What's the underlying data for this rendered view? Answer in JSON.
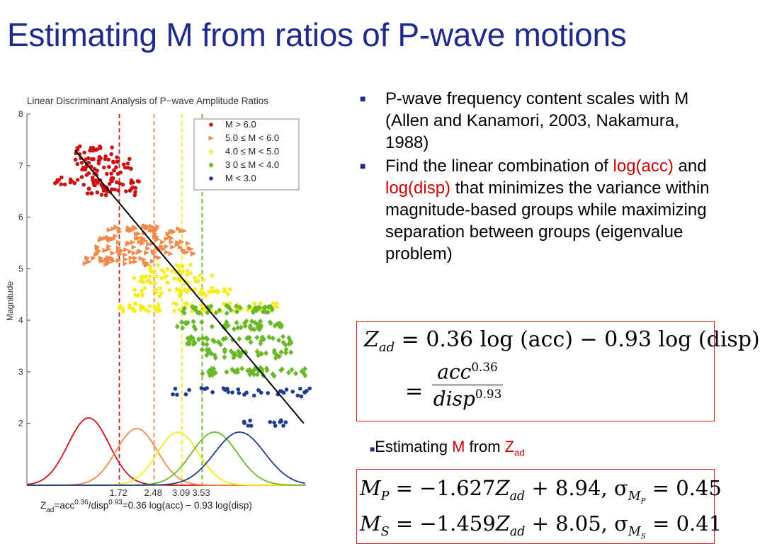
{
  "slide": {
    "title": "Estimating M from ratios of P-wave motions"
  },
  "bullets": {
    "b1": "P-wave frequency content scales with M (Allen and Kanamori, 2003, Nakamura, 1988)",
    "b2_pre": "Find the linear combination of ",
    "b2_acc": "log(acc)",
    "b2_and": " and ",
    "b2_disp": "log(disp)",
    "b2_post": " that minimizes the variance within magnitude-based groups while maximizing separation between groups (eigenvalue problem)"
  },
  "estimating": {
    "pre": "Estimating ",
    "M": "M",
    "from": " from ",
    "Z": "Z",
    "sub": "ad"
  },
  "equations": {
    "zad_lhs": "Z",
    "zad_sub": "ad",
    "zad_rhs": "= 0.36 log (acc) − 0.93 log (disp)",
    "frac_eq": "=",
    "frac_num": "acc",
    "frac_num_exp": "0.36",
    "frac_den": "disp",
    "frac_den_exp": "0.93",
    "mp": "M",
    "mp_sub": "P",
    "mp_rhs": " = −1.627",
    "mp_z": "Z",
    "mp_zsub": "ad",
    "mp_tail": " + 8.94, σ",
    "mp_sig_sub": "M",
    "mp_sig_sub2": "P",
    "mp_end": " = 0.45",
    "ms": "M",
    "ms_sub": "S",
    "ms_rhs": " = −1.459",
    "ms_z": "Z",
    "ms_zsub": "ad",
    "ms_tail": " + 8.05, σ",
    "ms_sig_sub": "M",
    "ms_sig_sub2": "S",
    "ms_end": " = 0.41"
  },
  "colors": {
    "title": "#1f2a8c",
    "accent_red": "#cc0000",
    "m6": "#cc1111",
    "m5": "#f08a4b",
    "m4": "#f2ec1a",
    "m3": "#6ab82a",
    "m2": "#1f3c8c"
  },
  "chart_data": {
    "type": "scatter",
    "title": "Linear Discriminant Analysis of P−wave Amplitude Ratios",
    "ylabel": "Magnitude",
    "xlabel": "Z_ad=acc^0.36/disp^0.93=0.36 log(acc) − 0.93 log(disp)",
    "xlabel_parts": {
      "z": "Z",
      "zsub": "ad",
      "a": "=acc",
      "asup": "0.36",
      "b": "/disp",
      "bsup": "0.93",
      "c": "=0.36 log(acc) − 0.93 log(disp)"
    },
    "ylim": [
      0.8,
      8
    ],
    "yticks": [
      "2",
      "3",
      "4",
      "5",
      "6",
      "7",
      "8"
    ],
    "thresholds": [
      {
        "label": "1.72",
        "color": "#d02020"
      },
      {
        "label": "2.48",
        "color": "#f08a4b"
      },
      {
        "label": "3.09",
        "color": "#f2ec1a"
      },
      {
        "label": "3.53",
        "color": "#6ab82a"
      }
    ],
    "legend": {
      "placement": "top-right",
      "entries": [
        "M > 6.0",
        "5.0 ≤ M < 6.0",
        "4.0 ≤ M < 5.0",
        "3 0 ≤ M < 4.0",
        "M < 3.0"
      ]
    },
    "series": [
      {
        "name": "M > 6.0",
        "marker": "circle",
        "color": "#cc1111",
        "clusters": [
          {
            "y": 7.3,
            "x": [
              0.7,
              1.6
            ]
          },
          {
            "y": 7.1,
            "x": [
              0.7,
              2.0
            ]
          },
          {
            "y": 6.9,
            "x": [
              0.9,
              2.1
            ]
          },
          {
            "y": 6.7,
            "x": [
              0.3,
              2.2
            ]
          },
          {
            "y": 6.5,
            "x": [
              0.95,
              2.2
            ]
          }
        ]
      },
      {
        "name": "5.0 ≤ M < 6.0",
        "marker": "triangle",
        "color": "#f08a4b",
        "clusters": [
          {
            "y": 5.75,
            "x": [
              1.5,
              3.2
            ]
          },
          {
            "y": 5.55,
            "x": [
              1.3,
              3.3
            ]
          },
          {
            "y": 5.35,
            "x": [
              1.2,
              3.4
            ]
          },
          {
            "y": 5.15,
            "x": [
              0.9,
              2.6
            ]
          }
        ]
      },
      {
        "name": "4.0 ≤ M < 5.0",
        "marker": "star",
        "color": "#f2ec1a",
        "clusters": [
          {
            "y": 5.0,
            "x": [
              2.3,
              3.3
            ]
          },
          {
            "y": 4.8,
            "x": [
              2.0,
              3.8
            ]
          },
          {
            "y": 4.55,
            "x": [
              2.0,
              4.2
            ]
          },
          {
            "y": 4.25,
            "x": [
              1.7,
              5.2
            ]
          }
        ]
      },
      {
        "name": "3 0 ≤ M < 4.0",
        "marker": "diamond",
        "color": "#6ab82a",
        "clusters": [
          {
            "y": 4.2,
            "x": [
              3.1,
              5.1
            ]
          },
          {
            "y": 3.9,
            "x": [
              2.9,
              5.3
            ]
          },
          {
            "y": 3.6,
            "x": [
              3.2,
              5.5
            ]
          },
          {
            "y": 3.35,
            "x": [
              3.5,
              5.5
            ]
          },
          {
            "y": 3.0,
            "x": [
              3.4,
              5.8
            ]
          }
        ]
      },
      {
        "name": "M < 3.0",
        "marker": "circle",
        "color": "#1f3c8c",
        "clusters": [
          {
            "y": 2.6,
            "x": [
              2.8,
              5.9
            ]
          },
          {
            "y": 2.0,
            "x": [
              4.4,
              5.5
            ]
          }
        ]
      }
    ],
    "fit_line": {
      "x": [
        0.75,
        5.75
      ],
      "y": [
        7.3,
        2.0
      ]
    },
    "distributions": [
      {
        "color": "#cc1111",
        "mean": 1.05,
        "sd": 0.45,
        "peak": 0.95
      },
      {
        "color": "#f08a4b",
        "mean": 2.1,
        "sd": 0.45,
        "peak": 0.8
      },
      {
        "color": "#f2ec1a",
        "mean": 3.0,
        "sd": 0.45,
        "peak": 0.75
      },
      {
        "color": "#6ab82a",
        "mean": 3.8,
        "sd": 0.5,
        "peak": 0.75
      },
      {
        "color": "#1f3c8c",
        "mean": 4.35,
        "sd": 0.55,
        "peak": 0.75
      }
    ],
    "xlim": [
      -0.3,
      5.8
    ]
  }
}
